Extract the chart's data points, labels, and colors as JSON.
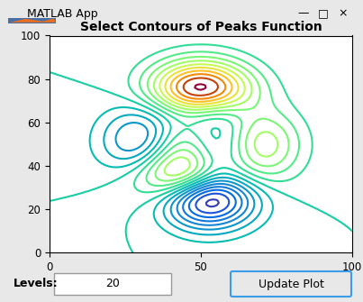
{
  "title": "Select Contours of Peaks Function",
  "title_fontsize": 10,
  "title_fontweight": "bold",
  "xlim": [
    0,
    100
  ],
  "ylim": [
    0,
    100
  ],
  "xticks": [
    0,
    50,
    100
  ],
  "yticks": [
    0,
    20,
    40,
    60,
    80,
    100
  ],
  "levels": 20,
  "colormap": "hsv",
  "window_title": "MATLAB App",
  "bg_color": "#e8e8e8",
  "plot_bg": "#ffffff",
  "label_levels": "Levels:",
  "label_levels_value": "20",
  "btn_label": "Update Plot",
  "window_title_fontsize": 9,
  "tick_fontsize": 8.5,
  "label_fontsize": 9,
  "title_bar_color": "#f0f0f0",
  "border_color": "#c0c0c0"
}
